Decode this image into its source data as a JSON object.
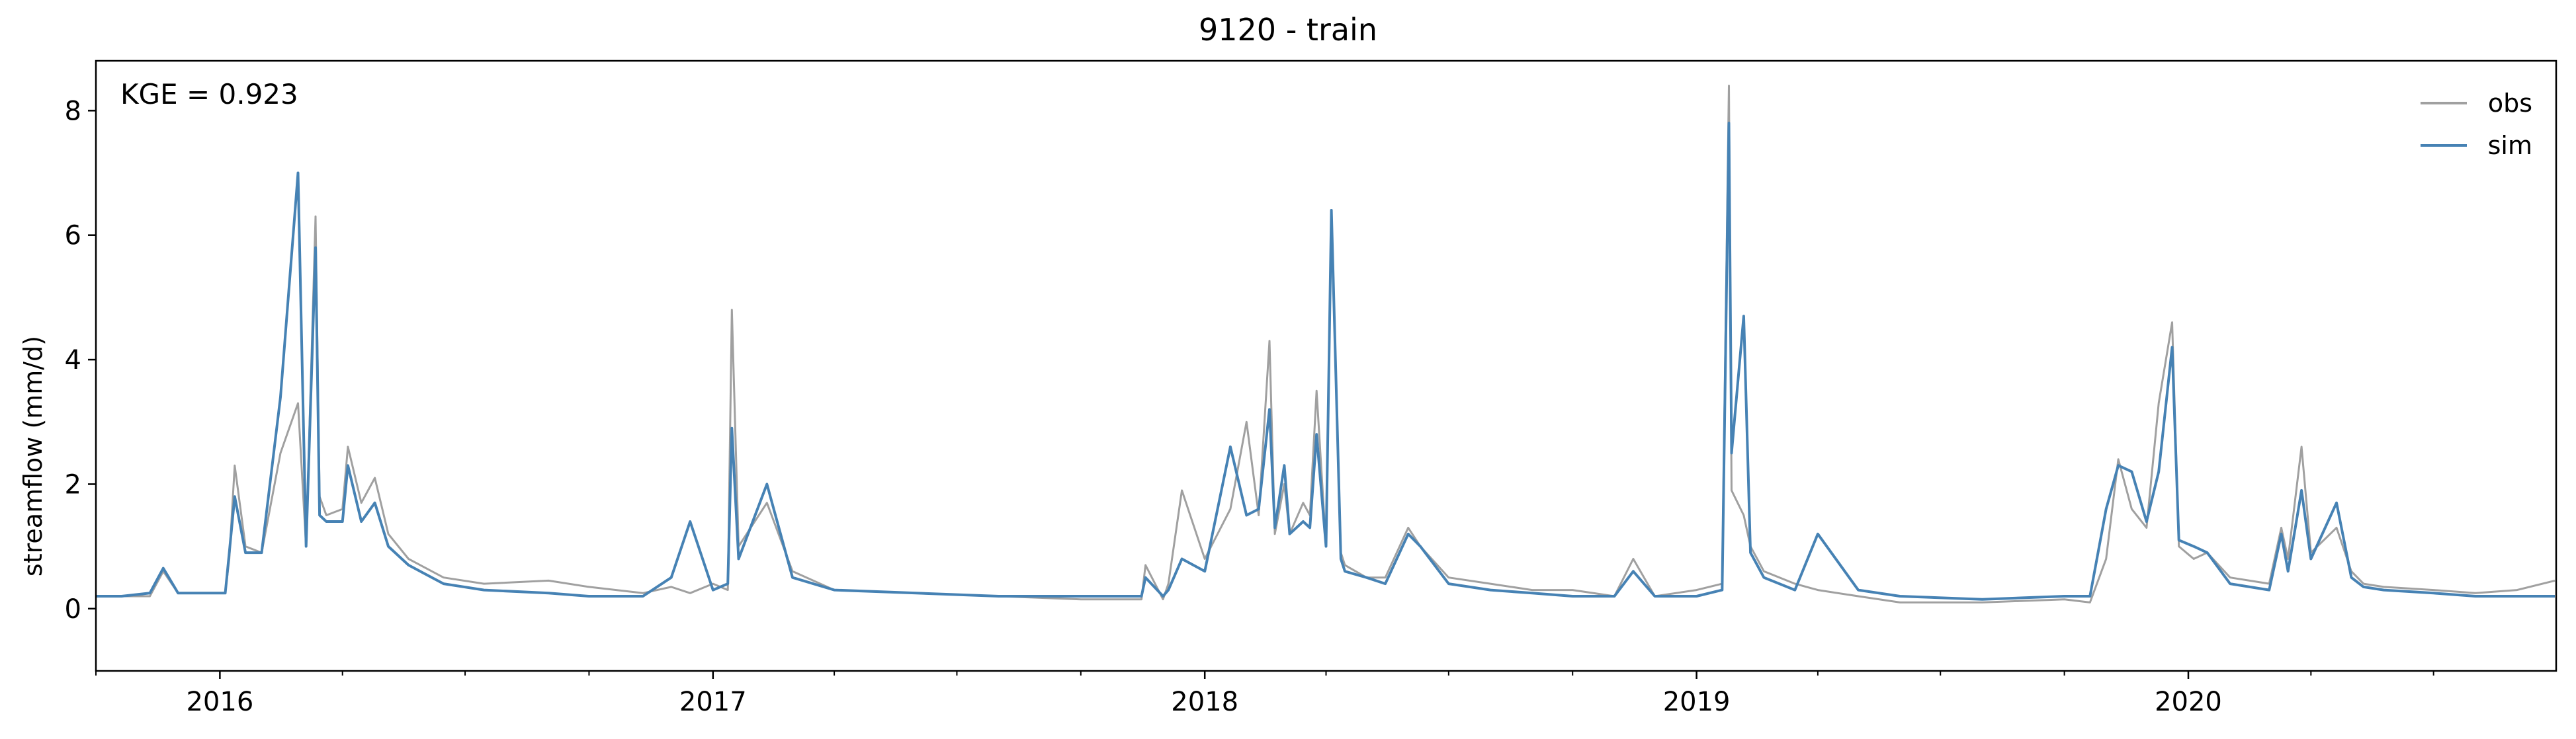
{
  "chart_data": {
    "type": "line",
    "title": "9120 - train",
    "xlabel": "",
    "ylabel": "streamflow (mm/d)",
    "ylim": [
      -1,
      8.8
    ],
    "yticks": [
      "0",
      "2",
      "4",
      "6",
      "8"
    ],
    "xticks": [
      "2016",
      "2017",
      "2018",
      "2019",
      "2020"
    ],
    "xlim": [
      "2015-10-01",
      "2020-09-30"
    ],
    "annotation": "KGE = 0.923",
    "legend": "top-right",
    "grid": false,
    "colors": {
      "obs": "#a0a0a0",
      "sim": "#4682b4"
    },
    "series": [
      {
        "name": "obs",
        "x": [
          "2015-10-01",
          "2015-10-20",
          "2015-11-10",
          "2015-11-20",
          "2015-12-01",
          "2016-01-05",
          "2016-01-08",
          "2016-01-12",
          "2016-01-20",
          "2016-02-01",
          "2016-02-15",
          "2016-02-28",
          "2016-03-05",
          "2016-03-12",
          "2016-03-15",
          "2016-03-20",
          "2016-04-01",
          "2016-04-05",
          "2016-04-15",
          "2016-04-25",
          "2016-05-05",
          "2016-05-20",
          "2016-06-15",
          "2016-07-15",
          "2016-09-01",
          "2016-10-01",
          "2016-11-10",
          "2016-12-01",
          "2016-12-15",
          "2017-01-01",
          "2017-01-12",
          "2017-01-15",
          "2017-01-20",
          "2017-02-10",
          "2017-03-01",
          "2017-04-01",
          "2017-06-01",
          "2017-08-01",
          "2017-10-01",
          "2017-11-15",
          "2017-11-18",
          "2017-12-01",
          "2017-12-05",
          "2017-12-15",
          "2018-01-01",
          "2018-01-20",
          "2018-02-01",
          "2018-02-10",
          "2018-02-18",
          "2018-02-22",
          "2018-03-01",
          "2018-03-05",
          "2018-03-15",
          "2018-03-20",
          "2018-03-25",
          "2018-04-01",
          "2018-04-05",
          "2018-04-12",
          "2018-04-15",
          "2018-05-01",
          "2018-05-15",
          "2018-06-01",
          "2018-06-10",
          "2018-07-01",
          "2018-08-01",
          "2018-09-01",
          "2018-10-01",
          "2018-11-01",
          "2018-11-15",
          "2018-12-01",
          "2019-01-01",
          "2019-01-20",
          "2019-01-25",
          "2019-01-27",
          "2019-02-05",
          "2019-02-10",
          "2019-02-20",
          "2019-03-15",
          "2019-04-01",
          "2019-05-01",
          "2019-06-01",
          "2019-08-01",
          "2019-10-01",
          "2019-10-20",
          "2019-11-01",
          "2019-11-10",
          "2019-11-20",
          "2019-12-01",
          "2019-12-10",
          "2019-12-20",
          "2019-12-25",
          "2020-01-05",
          "2020-01-15",
          "2020-02-01",
          "2020-03-01",
          "2020-03-10",
          "2020-03-15",
          "2020-03-25",
          "2020-04-01",
          "2020-04-20",
          "2020-05-01",
          "2020-05-10",
          "2020-05-25",
          "2020-07-01",
          "2020-08-01",
          "2020-09-01",
          "2020-09-29"
        ],
        "values": [
          0.2,
          0.2,
          0.2,
          0.6,
          0.25,
          0.25,
          0.8,
          2.3,
          1.0,
          0.9,
          2.5,
          3.3,
          1.0,
          6.3,
          1.8,
          1.5,
          1.6,
          2.6,
          1.7,
          2.1,
          1.2,
          0.8,
          0.5,
          0.4,
          0.45,
          0.35,
          0.25,
          0.35,
          0.25,
          0.4,
          0.3,
          4.8,
          1.0,
          1.7,
          0.6,
          0.3,
          0.25,
          0.2,
          0.15,
          0.15,
          0.7,
          0.15,
          0.4,
          1.9,
          0.8,
          1.6,
          3.0,
          1.5,
          4.3,
          1.2,
          2.0,
          1.2,
          1.7,
          1.5,
          3.5,
          1.0,
          6.3,
          0.9,
          0.7,
          0.5,
          0.5,
          1.3,
          1.0,
          0.5,
          0.4,
          0.3,
          0.3,
          0.2,
          0.8,
          0.2,
          0.3,
          0.4,
          8.4,
          1.9,
          1.5,
          1.0,
          0.6,
          0.4,
          0.3,
          0.2,
          0.1,
          0.1,
          0.15,
          0.1,
          0.8,
          2.4,
          1.6,
          1.3,
          3.3,
          4.6,
          1.0,
          0.8,
          0.9,
          0.5,
          0.4,
          1.3,
          0.8,
          2.6,
          0.9,
          1.3,
          0.6,
          0.4,
          0.35,
          0.3,
          0.25,
          0.3,
          0.45
        ]
      },
      {
        "name": "sim",
        "x": [
          "2015-10-01",
          "2015-10-20",
          "2015-11-10",
          "2015-11-20",
          "2015-12-01",
          "2016-01-05",
          "2016-01-08",
          "2016-01-12",
          "2016-01-20",
          "2016-02-01",
          "2016-02-15",
          "2016-02-28",
          "2016-03-05",
          "2016-03-12",
          "2016-03-15",
          "2016-03-20",
          "2016-04-01",
          "2016-04-05",
          "2016-04-15",
          "2016-04-25",
          "2016-05-05",
          "2016-05-20",
          "2016-06-15",
          "2016-07-15",
          "2016-09-01",
          "2016-10-01",
          "2016-11-10",
          "2016-12-01",
          "2016-12-15",
          "2017-01-01",
          "2017-01-12",
          "2017-01-15",
          "2017-01-20",
          "2017-02-10",
          "2017-03-01",
          "2017-04-01",
          "2017-06-01",
          "2017-08-01",
          "2017-10-01",
          "2017-11-15",
          "2017-11-18",
          "2017-12-01",
          "2017-12-05",
          "2017-12-15",
          "2018-01-01",
          "2018-01-20",
          "2018-02-01",
          "2018-02-10",
          "2018-02-18",
          "2018-02-22",
          "2018-03-01",
          "2018-03-05",
          "2018-03-15",
          "2018-03-20",
          "2018-03-25",
          "2018-04-01",
          "2018-04-05",
          "2018-04-12",
          "2018-04-15",
          "2018-05-01",
          "2018-05-15",
          "2018-06-01",
          "2018-06-10",
          "2018-07-01",
          "2018-08-01",
          "2018-09-01",
          "2018-10-01",
          "2018-11-01",
          "2018-11-15",
          "2018-12-01",
          "2019-01-01",
          "2019-01-20",
          "2019-01-25",
          "2019-01-27",
          "2019-02-05",
          "2019-02-10",
          "2019-02-20",
          "2019-03-15",
          "2019-04-01",
          "2019-05-01",
          "2019-06-01",
          "2019-08-01",
          "2019-10-01",
          "2019-10-20",
          "2019-11-01",
          "2019-11-10",
          "2019-11-20",
          "2019-12-01",
          "2019-12-10",
          "2019-12-20",
          "2019-12-25",
          "2020-01-05",
          "2020-01-15",
          "2020-02-01",
          "2020-03-01",
          "2020-03-10",
          "2020-03-15",
          "2020-03-25",
          "2020-04-01",
          "2020-04-20",
          "2020-05-01",
          "2020-05-10",
          "2020-05-25",
          "2020-07-01",
          "2020-08-01",
          "2020-09-01",
          "2020-09-29"
        ],
        "values": [
          0.2,
          0.2,
          0.25,
          0.65,
          0.25,
          0.25,
          0.9,
          1.8,
          0.9,
          0.9,
          3.4,
          7.0,
          1.0,
          5.8,
          1.5,
          1.4,
          1.4,
          2.3,
          1.4,
          1.7,
          1.0,
          0.7,
          0.4,
          0.3,
          0.25,
          0.2,
          0.2,
          0.5,
          1.4,
          0.3,
          0.4,
          2.9,
          0.8,
          2.0,
          0.5,
          0.3,
          0.25,
          0.2,
          0.2,
          0.2,
          0.5,
          0.2,
          0.3,
          0.8,
          0.6,
          2.6,
          1.5,
          1.6,
          3.2,
          1.3,
          2.3,
          1.2,
          1.4,
          1.3,
          2.8,
          1.0,
          6.4,
          0.8,
          0.6,
          0.5,
          0.4,
          1.2,
          1.0,
          0.4,
          0.3,
          0.25,
          0.2,
          0.2,
          0.6,
          0.2,
          0.2,
          0.3,
          7.8,
          2.5,
          4.7,
          0.9,
          0.5,
          0.3,
          1.2,
          0.3,
          0.2,
          0.15,
          0.2,
          0.2,
          1.6,
          2.3,
          2.2,
          1.4,
          2.2,
          4.2,
          1.1,
          1.0,
          0.9,
          0.4,
          0.3,
          1.2,
          0.6,
          1.9,
          0.8,
          1.7,
          0.5,
          0.35,
          0.3,
          0.25,
          0.2,
          0.2,
          0.2
        ]
      }
    ]
  }
}
